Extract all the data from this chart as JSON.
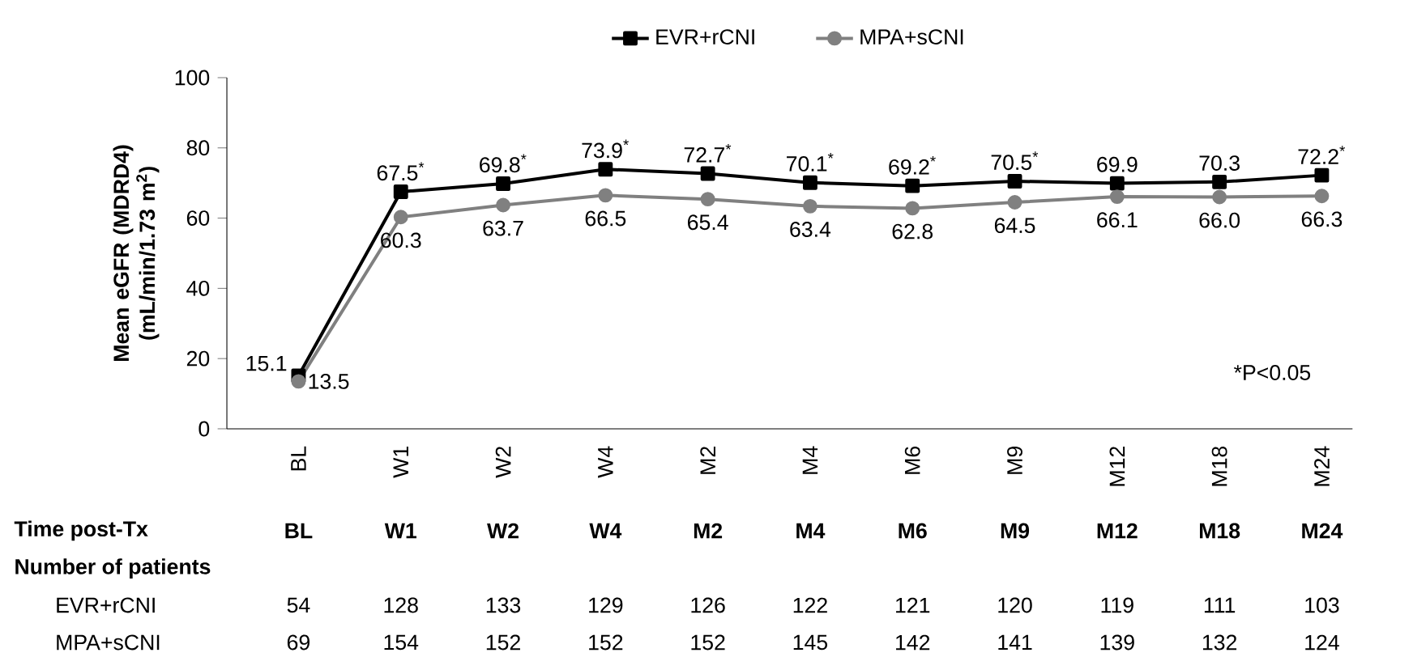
{
  "chart_data": {
    "type": "line",
    "ylabel": "Mean eGFR (MDRD4) (mL/min/1.73 m$^{2}$)",
    "categories": [
      "BL",
      "W1",
      "W2",
      "W4",
      "M2",
      "M4",
      "M6",
      "M9",
      "M12",
      "M18",
      "M24"
    ],
    "series": [
      {
        "name": "EVR+rCNI",
        "color": "#000000",
        "marker": "square",
        "values": [
          15.1,
          67.5,
          69.8,
          73.9,
          72.7,
          70.1,
          69.2,
          70.5,
          69.9,
          70.3,
          72.2
        ],
        "value_labels": [
          "15.1",
          "67.5$^{*}$",
          "69.8$^{*}$",
          "73.9$^{*}$",
          "72.7$^{*}$",
          "70.1$^{*}$",
          "69.2$^{*}$",
          "70.5$^{*}$",
          "69.9",
          "70.3",
          "72.2$^{*}$"
        ]
      },
      {
        "name": "MPA+sCNI",
        "color": "#808080",
        "marker": "circle",
        "values": [
          13.5,
          60.3,
          63.7,
          66.5,
          65.4,
          63.4,
          62.8,
          64.5,
          66.1,
          66.0,
          66.3
        ],
        "value_labels": [
          "13.5",
          "60.3",
          "63.7",
          "66.5",
          "65.4",
          "63.4",
          "62.8",
          "64.5",
          "66.1",
          "66.0",
          "66.3"
        ]
      }
    ],
    "ylim": [
      0,
      100
    ],
    "yticks": [
      0,
      20,
      40,
      60,
      80,
      100
    ],
    "legend": "top",
    "grid": false,
    "line_style": "solid",
    "annotations": [
      "*P<0.05",
      "Time post-Tx",
      "Number of patients",
      "EVR+rCNI",
      "54",
      "128",
      "133",
      "129",
      "126",
      "122",
      "121",
      "120",
      "119",
      "111",
      "103",
      "MPA+sCNI",
      "69",
      "154",
      "152",
      "152",
      "152",
      "145",
      "142",
      "141",
      "139",
      "132",
      "124"
    ]
  }
}
